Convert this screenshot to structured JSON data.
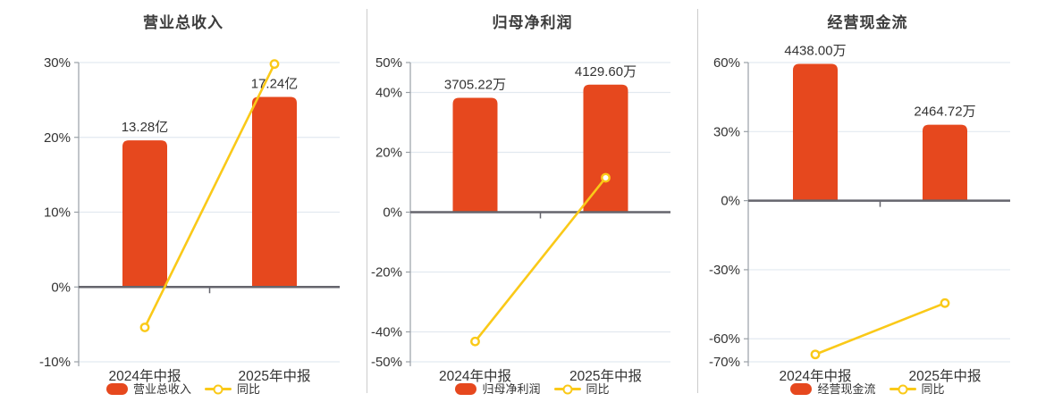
{
  "colors": {
    "background": "#ffffff",
    "bar": "#e6481e",
    "line": "#fac918",
    "marker_fill": "#ffffff",
    "grid": "#e2e9f0",
    "zero_axis": "#65656d",
    "y_axis": "#999fa6",
    "text": "#333333",
    "title": "#3c3c3c",
    "divider": "#cccccc"
  },
  "chart_data": [
    {
      "type": "bar",
      "title": "营业总收入",
      "categories": [
        "2024年中报",
        "2025年中报"
      ],
      "series": [
        {
          "name": "营业总收入",
          "type": "bar",
          "values": [
            13.28,
            17.24
          ],
          "value_labels": [
            "13.28亿",
            "17.24亿"
          ],
          "plotted_axis_pct": [
            19.6,
            25.4
          ]
        },
        {
          "name": "同比",
          "type": "line",
          "values_pct": [
            -5.4,
            29.8
          ]
        }
      ],
      "xlabel": "",
      "ylabel": "",
      "ylim": [
        -10,
        30
      ],
      "yticks": [
        30,
        20,
        10,
        0,
        -10
      ],
      "ytick_suffix": "%",
      "grid": true,
      "legend_position": "bottom"
    },
    {
      "type": "bar",
      "title": "归母净利润",
      "categories": [
        "2024年中报",
        "2025年中报"
      ],
      "series": [
        {
          "name": "归母净利润",
          "type": "bar",
          "values": [
            3705.22,
            4129.6
          ],
          "value_labels": [
            "3705.22万",
            "4129.60万"
          ],
          "plotted_axis_pct": [
            38.2,
            42.6
          ]
        },
        {
          "name": "同比",
          "type": "line",
          "values_pct": [
            -43.2,
            11.5
          ]
        }
      ],
      "xlabel": "",
      "ylabel": "",
      "ylim": [
        -50,
        50
      ],
      "yticks": [
        50,
        40,
        20,
        0,
        -20,
        -40,
        -50
      ],
      "ytick_suffix": "%",
      "grid": true,
      "legend_position": "bottom"
    },
    {
      "type": "bar",
      "title": "经营现金流",
      "categories": [
        "2024年中报",
        "2025年中报"
      ],
      "series": [
        {
          "name": "经营现金流",
          "type": "bar",
          "values": [
            4438.0,
            2464.72
          ],
          "value_labels": [
            "4438.00万",
            "2464.72万"
          ],
          "plotted_axis_pct": [
            59.4,
            33.0
          ]
        },
        {
          "name": "同比",
          "type": "line",
          "values_pct": [
            -66.8,
            -44.5
          ]
        }
      ],
      "xlabel": "",
      "ylabel": "",
      "ylim": [
        -70,
        60
      ],
      "yticks": [
        60,
        30,
        0,
        -30,
        -60,
        -70
      ],
      "ytick_suffix": "%",
      "grid": true,
      "legend_position": "bottom"
    }
  ]
}
